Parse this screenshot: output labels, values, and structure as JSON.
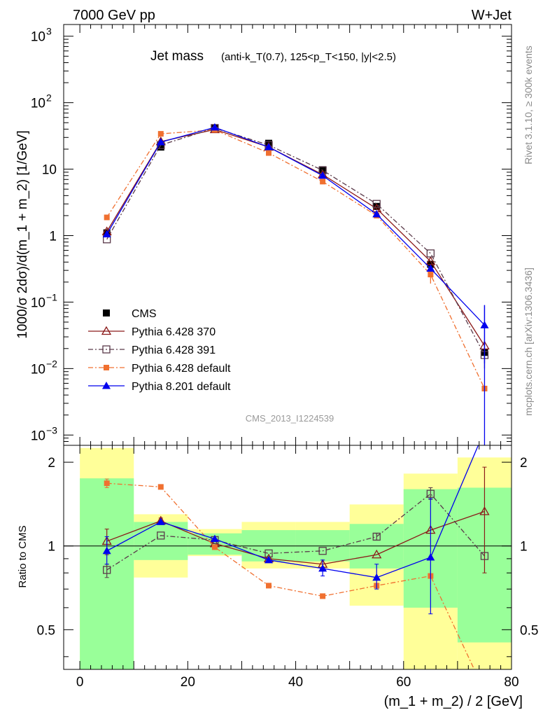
{
  "header": {
    "energy_label": "7000 GeV pp",
    "process_label": "W+Jet"
  },
  "side_labels": {
    "rivet": "Rivet 3.1.10, ≥ 300k events",
    "mcplots": "mcplots.cern.ch [arXiv:1306.3436]"
  },
  "chart_data": [
    {
      "type": "scatter",
      "panel": "main",
      "title_main": "Jet mass",
      "title_sub": "(anti-k_T(0.7), 125<p_T<150, |y|<2.5)",
      "ylabel": "1000/σ 2dσ)/d(m_1 + m_2) [1/GeV]",
      "xlabel": "(m_1 + m_2) / 2 [GeV]",
      "analysis_id": "CMS_2013_I1224539",
      "yscale": "log",
      "ylim": [
        0.0007,
        1500
      ],
      "xlim": [
        -3,
        80
      ],
      "x": [
        5,
        15,
        25,
        35,
        45,
        55,
        65,
        75
      ],
      "xticks": [
        0,
        20,
        40,
        60,
        80
      ],
      "yticks_labels": [
        "10^-3",
        "10^-2",
        "10^-1",
        "1",
        "10",
        "10^2",
        "10^3"
      ],
      "legend_position": "left-center",
      "series": [
        {
          "name": "CMS",
          "color": "#000000",
          "marker": "filled-square",
          "line": "none",
          "values": [
            1.1,
            21.5,
            41,
            24.5,
            9.8,
            2.75,
            0.37,
            0.0175
          ]
        },
        {
          "name": "Pythia 6.428 370",
          "color": "#8b1a1a",
          "marker": "open-triangle",
          "line": "solid",
          "values": [
            1.15,
            26,
            39.5,
            21.5,
            8.3,
            2.55,
            0.41,
            0.022
          ]
        },
        {
          "name": "Pythia 6.428 391",
          "color": "#5a3a4a",
          "marker": "open-square",
          "line": "dashdot",
          "values": [
            0.88,
            23,
            41.5,
            23,
            9.6,
            3.0,
            0.54,
            0.016
          ]
        },
        {
          "name": "Pythia 6.428 default",
          "color": "#f07030",
          "marker": "small-filled-square",
          "line": "dashdot",
          "values": [
            1.88,
            34,
            39,
            17.5,
            6.5,
            2.0,
            0.26,
            0.005
          ]
        },
        {
          "name": "Pythia 8.201 default",
          "color": "#0000ee",
          "marker": "filled-triangle",
          "line": "solid",
          "values": [
            1.05,
            25.5,
            42.5,
            21.5,
            8.0,
            2.1,
            0.32,
            0.045
          ]
        }
      ]
    },
    {
      "type": "line",
      "panel": "ratio",
      "ylabel": "Ratio to CMS",
      "yscale": "log",
      "ylim": [
        0.36,
        2.3
      ],
      "xlim": [
        -3,
        80
      ],
      "y_ticks": [
        "0.5",
        "1",
        "2"
      ],
      "bands": {
        "edges": [
          0,
          10,
          20,
          30,
          40,
          50,
          60,
          70,
          80
        ],
        "green": [
          [
            0.36,
            1.75
          ],
          [
            0.89,
            1.22
          ],
          [
            0.93,
            1.11
          ],
          [
            0.88,
            1.14
          ],
          [
            0.88,
            1.14
          ],
          [
            0.83,
            1.2
          ],
          [
            0.6,
            1.6
          ],
          [
            0.45,
            1.62
          ]
        ],
        "yellow": [
          [
            0.36,
            2.25
          ],
          [
            0.77,
            1.3
          ],
          [
            0.92,
            1.15
          ],
          [
            0.83,
            1.22
          ],
          [
            0.83,
            1.22
          ],
          [
            0.61,
            1.41
          ],
          [
            0.36,
            1.82
          ],
          [
            0.36,
            2.08
          ]
        ]
      },
      "x": [
        5,
        15,
        25,
        35,
        45,
        55,
        65,
        75
      ],
      "series": [
        {
          "name": "Pythia 6.428 370",
          "color": "#8b1a1a",
          "marker": "open-triangle",
          "line": "solid",
          "values": [
            1.04,
            1.23,
            1.02,
            0.9,
            0.86,
            0.93,
            1.14,
            1.33
          ]
        },
        {
          "name": "Pythia 6.428 391",
          "color": "#5a3a4a",
          "marker": "open-square",
          "line": "dashdot",
          "values": [
            0.82,
            1.09,
            1.05,
            0.94,
            0.96,
            1.08,
            1.54,
            0.92
          ]
        },
        {
          "name": "Pythia 6.428 default",
          "color": "#f07030",
          "marker": "small-filled-square",
          "line": "dashdot",
          "values": [
            1.68,
            1.63,
            0.99,
            0.72,
            0.66,
            0.72,
            0.78,
            0.3
          ]
        },
        {
          "name": "Pythia 8.201 default",
          "color": "#0000ee",
          "marker": "filled-triangle",
          "line": "solid",
          "values": [
            0.96,
            1.22,
            1.06,
            0.89,
            0.83,
            0.77,
            0.91,
            2.6
          ]
        }
      ]
    }
  ]
}
